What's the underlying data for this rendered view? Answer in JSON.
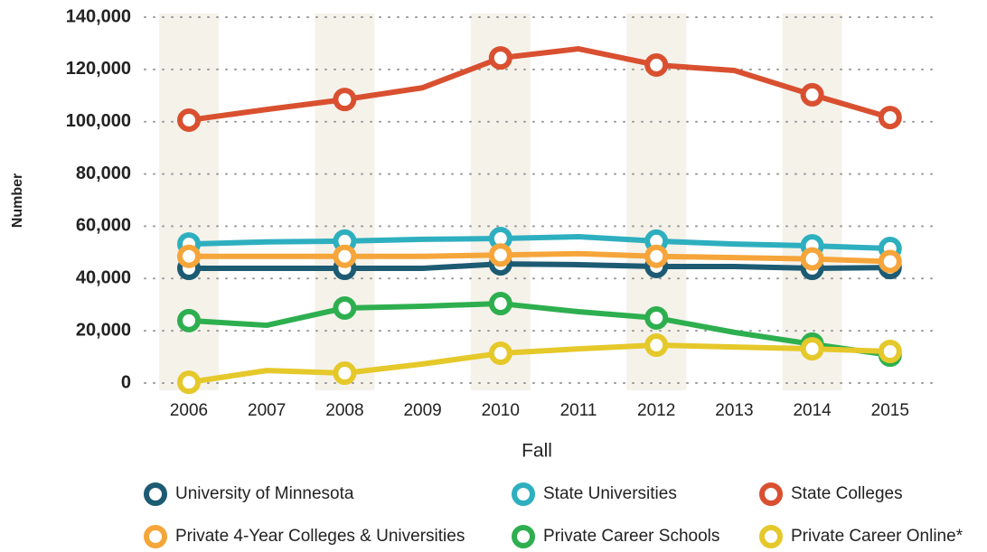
{
  "chart_data": {
    "type": "line",
    "xlabel": "Fall",
    "ylabel": "Number",
    "categories": [
      "2006",
      "2007",
      "2008",
      "2009",
      "2010",
      "2011",
      "2012",
      "2013",
      "2014",
      "2015"
    ],
    "ylim": [
      0,
      140000
    ],
    "yticks": [
      {
        "value": 0,
        "label": "0"
      },
      {
        "value": 20000,
        "label": "20,000"
      },
      {
        "value": 40000,
        "label": "40,000"
      },
      {
        "value": 60000,
        "label": "60,000"
      },
      {
        "value": 80000,
        "label": "80,000"
      },
      {
        "value": 100000,
        "label": "100,000"
      },
      {
        "value": 120000,
        "label": "120,000"
      },
      {
        "value": 140000,
        "label": "140,000"
      }
    ],
    "grid": true,
    "series": [
      {
        "name": "University of Minnesota",
        "color": "#1d5b73",
        "values": [
          43900,
          43900,
          43900,
          43900,
          45600,
          45300,
          44600,
          44600,
          43900,
          44200
        ]
      },
      {
        "name": "State Universities",
        "color": "#2eafbf",
        "values": [
          53200,
          54000,
          54300,
          55000,
          55300,
          56000,
          54300,
          53200,
          52500,
          51500
        ]
      },
      {
        "name": "State Colleges",
        "color": "#d95030",
        "values": [
          100600,
          104700,
          108500,
          113000,
          124400,
          127900,
          121700,
          119600,
          110300,
          101600
        ]
      },
      {
        "name": "Private 4-Year Colleges & Universities",
        "color": "#f5a53a",
        "values": [
          48500,
          48500,
          48500,
          48500,
          49000,
          49500,
          48500,
          48000,
          47500,
          46500
        ]
      },
      {
        "name": "Private Career Schools",
        "color": "#2eaf4f",
        "values": [
          23900,
          22100,
          28700,
          29400,
          30400,
          27300,
          24900,
          19400,
          14900,
          10700
        ]
      },
      {
        "name": "Private Career Online*",
        "color": "#e5c82a",
        "values": [
          300,
          4800,
          3800,
          7300,
          11400,
          13100,
          14500,
          13800,
          13100,
          12100
        ]
      }
    ]
  }
}
